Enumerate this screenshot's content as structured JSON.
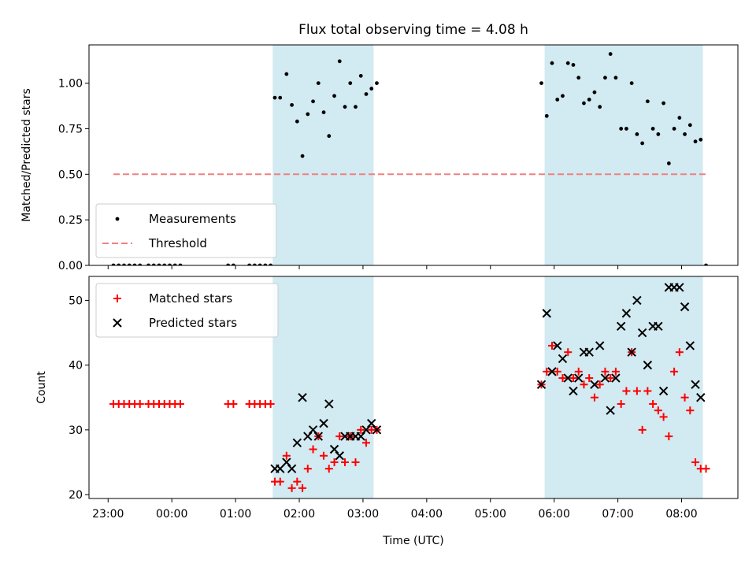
{
  "chart_data": [
    {
      "type": "scatter",
      "title": "Flux total observing time = 4.08 h",
      "xlabel": "",
      "ylabel": "Matched/Predicted stars",
      "ylim": [
        0,
        1.21
      ],
      "yticks": [
        0.0,
        0.25,
        0.5,
        0.75,
        1.0
      ],
      "ytick_labels": [
        "0.00",
        "0.25",
        "0.50",
        "0.75",
        "1.00"
      ],
      "legend_position": "lower-left",
      "shaded_intervals": [
        [
          "01:35",
          "03:10"
        ],
        [
          "05:51",
          "08:20"
        ]
      ],
      "shade_color": "#add8e6",
      "series": [
        {
          "name": "Measurements",
          "marker": "dot",
          "color": "#000000",
          "points": [
            [
              "23:05",
              0
            ],
            [
              "23:10",
              0
            ],
            [
              "23:15",
              0
            ],
            [
              "23:20",
              0
            ],
            [
              "23:25",
              0
            ],
            [
              "23:30",
              0
            ],
            [
              "23:38",
              0
            ],
            [
              "23:43",
              0
            ],
            [
              "23:48",
              0
            ],
            [
              "23:53",
              0
            ],
            [
              "23:58",
              0
            ],
            [
              "00:03",
              0
            ],
            [
              "00:08",
              0
            ],
            [
              "00:53",
              0
            ],
            [
              "00:58",
              0
            ],
            [
              "01:13",
              0
            ],
            [
              "01:18",
              0
            ],
            [
              "01:23",
              0
            ],
            [
              "01:28",
              0
            ],
            [
              "01:33",
              0
            ],
            [
              "01:37",
              0.92
            ],
            [
              "01:42",
              0.92
            ],
            [
              "01:48",
              1.05
            ],
            [
              "01:53",
              0.88
            ],
            [
              "01:58",
              0.79
            ],
            [
              "02:03",
              0.6
            ],
            [
              "02:08",
              0.83
            ],
            [
              "02:13",
              0.9
            ],
            [
              "02:18",
              1.0
            ],
            [
              "02:23",
              0.84
            ],
            [
              "02:28",
              0.71
            ],
            [
              "02:33",
              0.93
            ],
            [
              "02:38",
              1.12
            ],
            [
              "02:43",
              0.87
            ],
            [
              "02:48",
              1.0
            ],
            [
              "02:53",
              0.87
            ],
            [
              "02:58",
              1.04
            ],
            [
              "03:03",
              0.94
            ],
            [
              "03:08",
              0.97
            ],
            [
              "03:13",
              1.0
            ],
            [
              "05:48",
              1.0
            ],
            [
              "05:53",
              0.82
            ],
            [
              "05:58",
              1.11
            ],
            [
              "06:03",
              0.91
            ],
            [
              "06:08",
              0.93
            ],
            [
              "06:13",
              1.11
            ],
            [
              "06:18",
              1.1
            ],
            [
              "06:23",
              1.03
            ],
            [
              "06:28",
              0.89
            ],
            [
              "06:33",
              0.91
            ],
            [
              "06:38",
              0.95
            ],
            [
              "06:43",
              0.87
            ],
            [
              "06:48",
              1.03
            ],
            [
              "06:53",
              1.16
            ],
            [
              "06:58",
              1.03
            ],
            [
              "07:03",
              0.75
            ],
            [
              "07:08",
              0.75
            ],
            [
              "07:13",
              1.0
            ],
            [
              "07:18",
              0.72
            ],
            [
              "07:23",
              0.67
            ],
            [
              "07:28",
              0.9
            ],
            [
              "07:33",
              0.75
            ],
            [
              "07:38",
              0.72
            ],
            [
              "07:43",
              0.89
            ],
            [
              "07:48",
              0.56
            ],
            [
              "07:53",
              0.75
            ],
            [
              "07:58",
              0.81
            ],
            [
              "08:03",
              0.72
            ],
            [
              "08:08",
              0.77
            ],
            [
              "08:13",
              0.68
            ],
            [
              "08:18",
              0.69
            ],
            [
              "08:23",
              0
            ]
          ]
        },
        {
          "name": "Threshold",
          "marker": "dashed-line",
          "color": "#f08080",
          "points": [
            [
              "23:05",
              0.5
            ],
            [
              "08:25",
              0.5
            ]
          ]
        }
      ]
    },
    {
      "type": "scatter",
      "title": "",
      "xlabel": "Time (UTC)",
      "ylabel": "Count",
      "ylim": [
        19.4,
        53.7
      ],
      "yticks": [
        20,
        30,
        40,
        50
      ],
      "ytick_labels": [
        "20",
        "30",
        "40",
        "50"
      ],
      "xlim": [
        "22:42",
        "08:53"
      ],
      "xticks": [
        "23:00",
        "00:00",
        "01:00",
        "02:00",
        "03:00",
        "04:00",
        "05:00",
        "06:00",
        "07:00",
        "08:00"
      ],
      "xtick_labels": [
        "23:00",
        "00:00",
        "01:00",
        "02:00",
        "03:00",
        "04:00",
        "05:00",
        "06:00",
        "07:00",
        "08:00"
      ],
      "legend_position": "upper-left",
      "shaded_intervals": [
        [
          "01:35",
          "03:10"
        ],
        [
          "05:51",
          "08:20"
        ]
      ],
      "shade_color": "#add8e6",
      "series": [
        {
          "name": "Matched stars",
          "marker": "plus",
          "color": "#ff0000",
          "points": [
            [
              "23:05",
              34
            ],
            [
              "23:10",
              34
            ],
            [
              "23:15",
              34
            ],
            [
              "23:20",
              34
            ],
            [
              "23:25",
              34
            ],
            [
              "23:30",
              34
            ],
            [
              "23:38",
              34
            ],
            [
              "23:43",
              34
            ],
            [
              "23:48",
              34
            ],
            [
              "23:53",
              34
            ],
            [
              "23:58",
              34
            ],
            [
              "00:03",
              34
            ],
            [
              "00:08",
              34
            ],
            [
              "00:53",
              34
            ],
            [
              "00:58",
              34
            ],
            [
              "01:13",
              34
            ],
            [
              "01:18",
              34
            ],
            [
              "01:23",
              34
            ],
            [
              "01:28",
              34
            ],
            [
              "01:33",
              34
            ],
            [
              "01:37",
              22
            ],
            [
              "01:42",
              22
            ],
            [
              "01:48",
              26
            ],
            [
              "01:53",
              21
            ],
            [
              "01:58",
              22
            ],
            [
              "02:03",
              21
            ],
            [
              "02:08",
              24
            ],
            [
              "02:13",
              27
            ],
            [
              "02:18",
              29
            ],
            [
              "02:23",
              26
            ],
            [
              "02:28",
              24
            ],
            [
              "02:33",
              25
            ],
            [
              "02:38",
              29
            ],
            [
              "02:43",
              25
            ],
            [
              "02:48",
              29
            ],
            [
              "02:53",
              25
            ],
            [
              "02:58",
              30
            ],
            [
              "03:03",
              28
            ],
            [
              "03:08",
              30
            ],
            [
              "03:13",
              30
            ],
            [
              "05:48",
              37
            ],
            [
              "05:53",
              39
            ],
            [
              "05:58",
              43
            ],
            [
              "06:03",
              39
            ],
            [
              "06:08",
              38
            ],
            [
              "06:13",
              42
            ],
            [
              "06:18",
              38
            ],
            [
              "06:23",
              39
            ],
            [
              "06:28",
              37
            ],
            [
              "06:33",
              38
            ],
            [
              "06:38",
              35
            ],
            [
              "06:43",
              37
            ],
            [
              "06:48",
              39
            ],
            [
              "06:53",
              38
            ],
            [
              "06:58",
              39
            ],
            [
              "07:03",
              34
            ],
            [
              "07:08",
              36
            ],
            [
              "07:13",
              42
            ],
            [
              "07:18",
              36
            ],
            [
              "07:23",
              30
            ],
            [
              "07:28",
              36
            ],
            [
              "07:33",
              34
            ],
            [
              "07:38",
              33
            ],
            [
              "07:43",
              32
            ],
            [
              "07:48",
              29
            ],
            [
              "07:53",
              39
            ],
            [
              "07:58",
              42
            ],
            [
              "08:03",
              35
            ],
            [
              "08:08",
              33
            ],
            [
              "08:13",
              25
            ],
            [
              "08:18",
              24
            ],
            [
              "08:23",
              24
            ]
          ]
        },
        {
          "name": "Predicted stars",
          "marker": "x",
          "color": "#000000",
          "points": [
            [
              "01:37",
              24
            ],
            [
              "01:42",
              24
            ],
            [
              "01:48",
              25
            ],
            [
              "01:53",
              24
            ],
            [
              "01:58",
              28
            ],
            [
              "02:03",
              35
            ],
            [
              "02:08",
              29
            ],
            [
              "02:13",
              30
            ],
            [
              "02:18",
              29
            ],
            [
              "02:23",
              31
            ],
            [
              "02:28",
              34
            ],
            [
              "02:33",
              27
            ],
            [
              "02:38",
              26
            ],
            [
              "02:43",
              29
            ],
            [
              "02:48",
              29
            ],
            [
              "02:53",
              29
            ],
            [
              "02:58",
              29
            ],
            [
              "03:03",
              30
            ],
            [
              "03:08",
              31
            ],
            [
              "03:13",
              30
            ],
            [
              "05:48",
              37
            ],
            [
              "05:53",
              48
            ],
            [
              "05:58",
              39
            ],
            [
              "06:03",
              43
            ],
            [
              "06:08",
              41
            ],
            [
              "06:13",
              38
            ],
            [
              "06:18",
              36
            ],
            [
              "06:23",
              38
            ],
            [
              "06:28",
              42
            ],
            [
              "06:33",
              42
            ],
            [
              "06:38",
              37
            ],
            [
              "06:43",
              43
            ],
            [
              "06:48",
              38
            ],
            [
              "06:53",
              33
            ],
            [
              "06:58",
              38
            ],
            [
              "07:03",
              46
            ],
            [
              "07:08",
              48
            ],
            [
              "07:13",
              42
            ],
            [
              "07:18",
              50
            ],
            [
              "07:23",
              45
            ],
            [
              "07:28",
              40
            ],
            [
              "07:33",
              46
            ],
            [
              "07:38",
              46
            ],
            [
              "07:43",
              36
            ],
            [
              "07:48",
              52
            ],
            [
              "07:53",
              52
            ],
            [
              "07:58",
              52
            ],
            [
              "08:03",
              49
            ],
            [
              "08:08",
              43
            ],
            [
              "08:13",
              37
            ],
            [
              "08:18",
              35
            ]
          ]
        }
      ]
    }
  ]
}
